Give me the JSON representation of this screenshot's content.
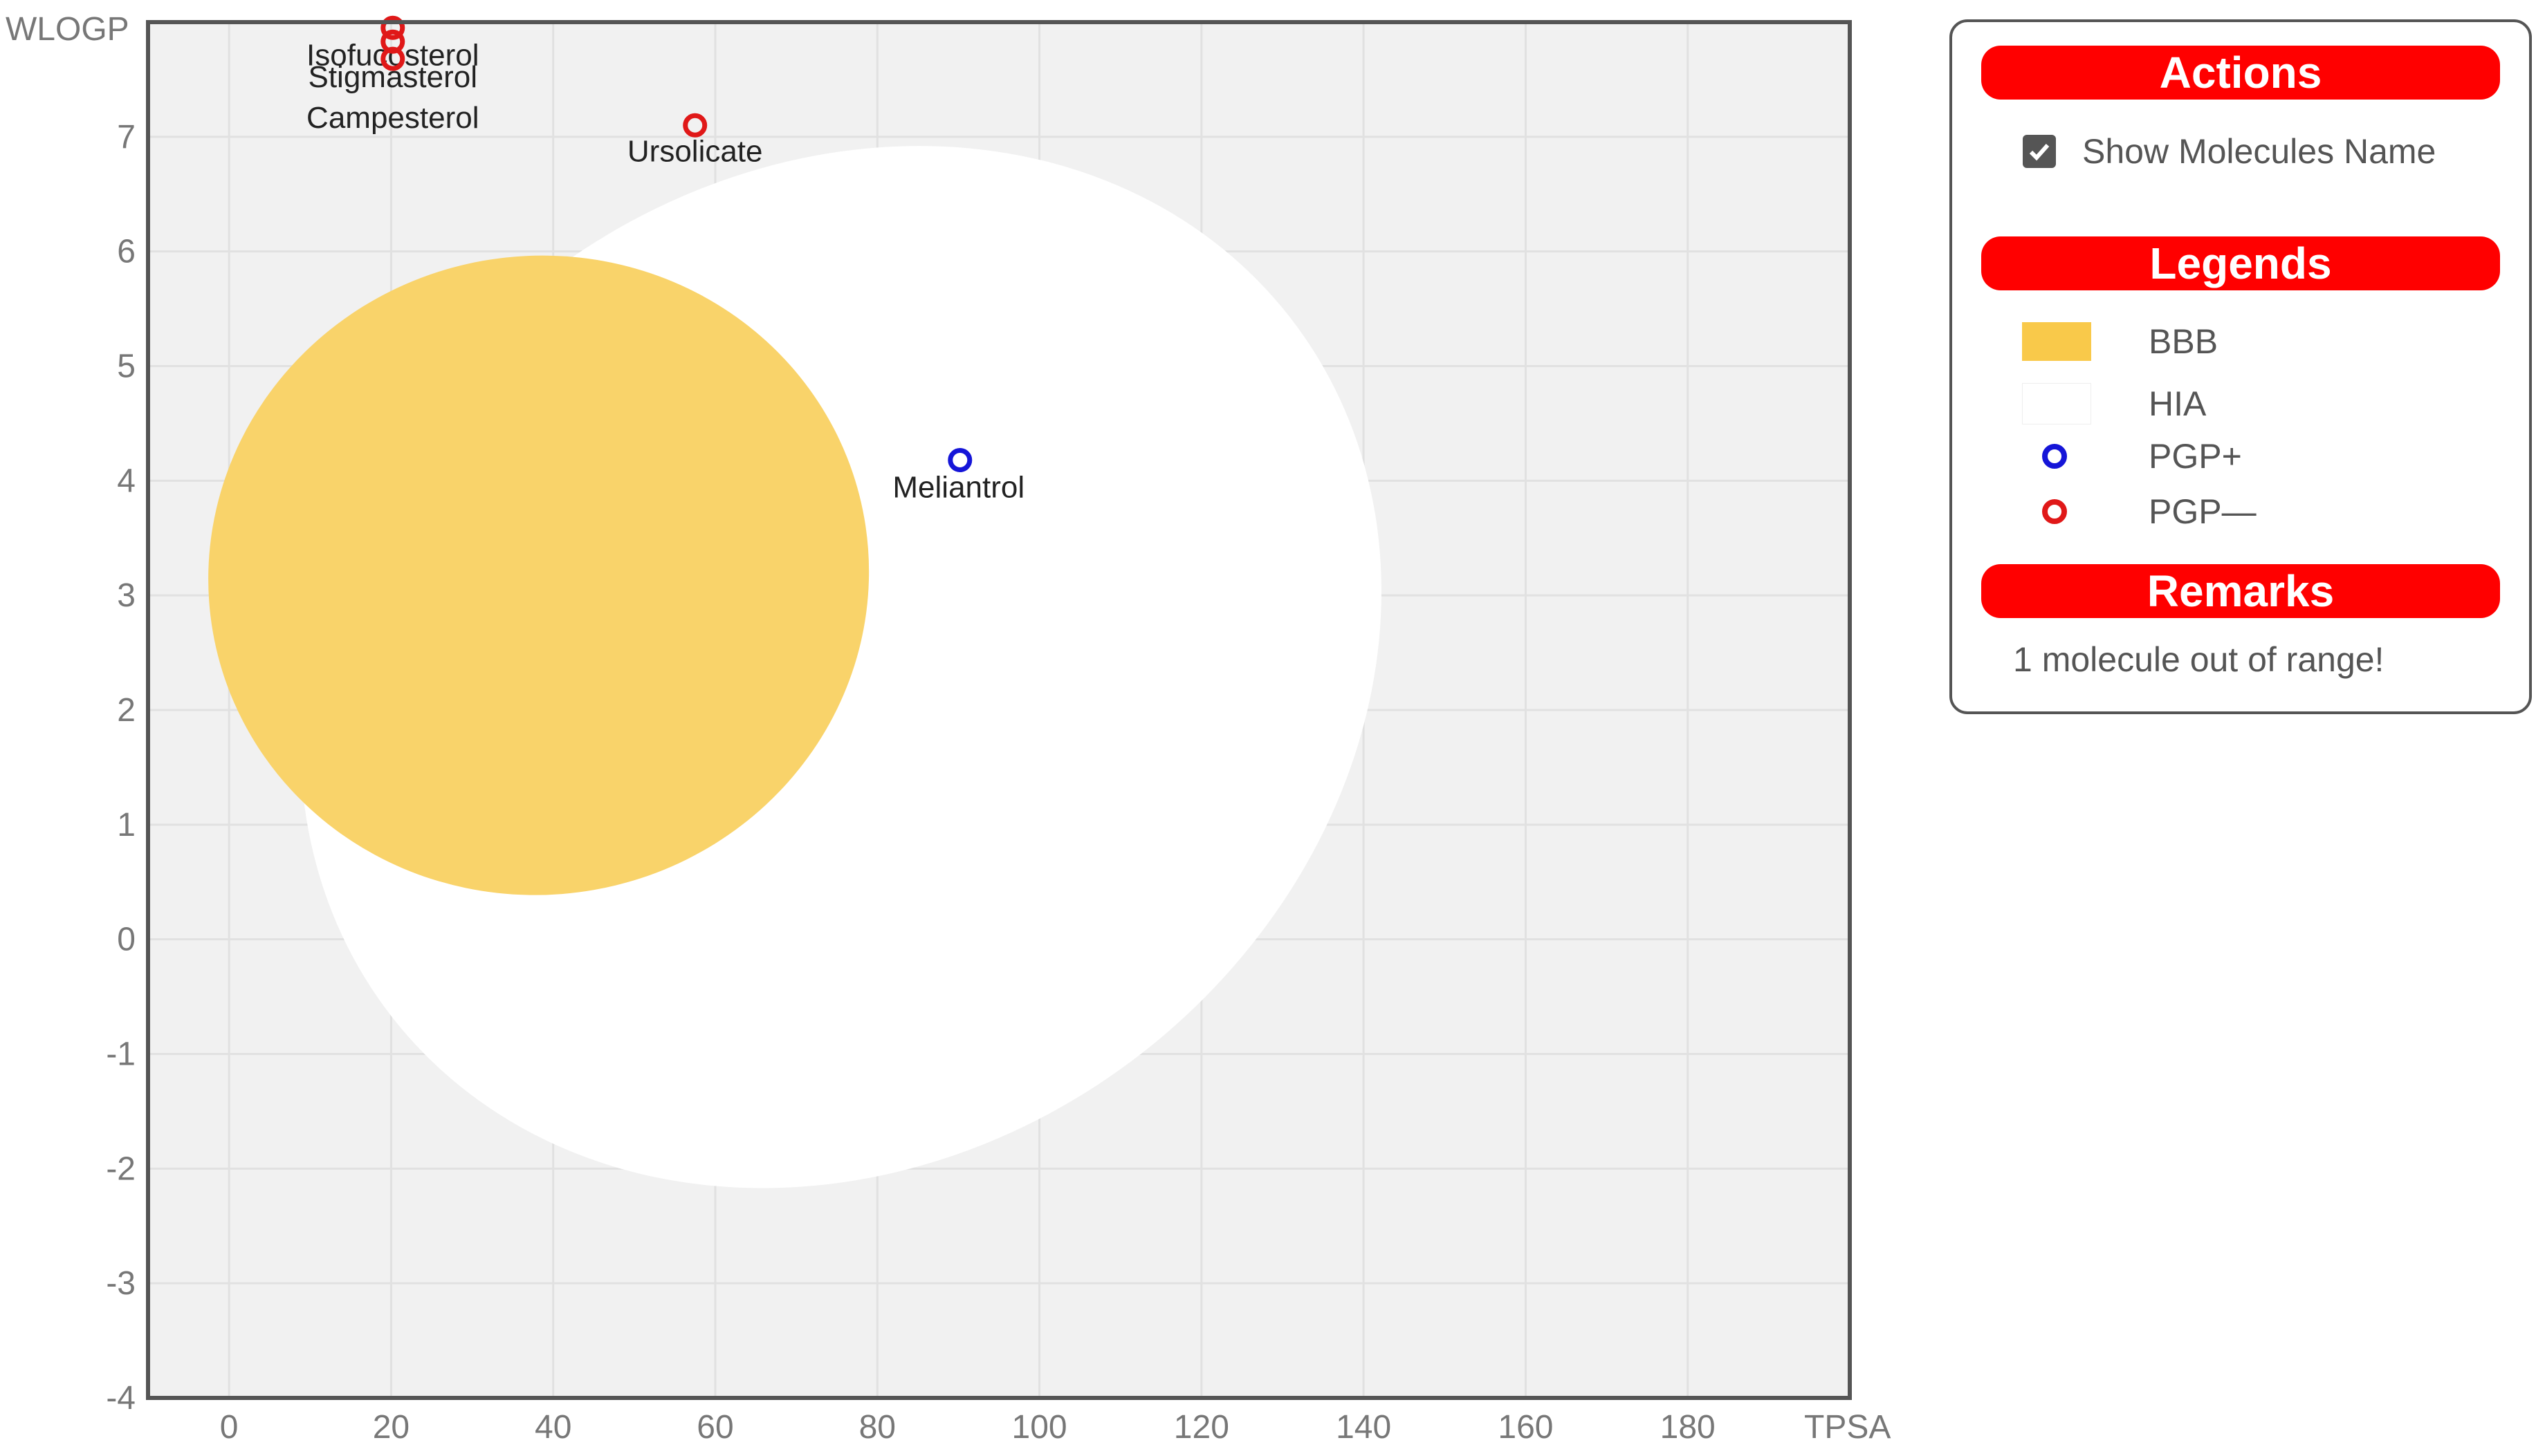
{
  "chart_data": {
    "type": "scatter",
    "xlabel": "TPSA",
    "ylabel": "WLOGP",
    "xlim": [
      -10,
      200
    ],
    "ylim": [
      -4,
      8
    ],
    "x_ticks": [
      0,
      20,
      40,
      60,
      80,
      100,
      120,
      140,
      160,
      180
    ],
    "y_ticks": [
      -4,
      -3,
      -2,
      -1,
      0,
      1,
      2,
      3,
      4,
      5,
      6,
      7
    ],
    "grid": true,
    "regions": [
      {
        "name": "HIA",
        "shape": "ellipse",
        "color": "#ffffff"
      },
      {
        "name": "BBB",
        "shape": "ellipse",
        "color": "#f9d36a"
      }
    ],
    "points": [
      {
        "name": "Isofucosterol",
        "x": 20.2,
        "y": 7.95,
        "pgp": "PGP-"
      },
      {
        "name": "Stigmasterol",
        "x": 20.2,
        "y": 7.83,
        "pgp": "PGP-"
      },
      {
        "name": "Campesterol",
        "x": 20.2,
        "y": 7.68,
        "pgp": "PGP-"
      },
      {
        "name": "Ursolicate",
        "x": 57.5,
        "y": 7.1,
        "pgp": "PGP-"
      },
      {
        "name": "Meliantrol",
        "x": 90.2,
        "y": 4.18,
        "pgp": "PGP+"
      }
    ],
    "colors": {
      "plot_bg": "#f1f1f1",
      "grid": "#e1e1e1",
      "pgp_plus": "#1515d8",
      "pgp_minus": "#e01818",
      "bbb": "#f9d36a",
      "hia": "#ffffff"
    }
  },
  "panel": {
    "actions_title": "Actions",
    "show_names_label": "Show Molecules Name",
    "show_names_checked": true,
    "legends_title": "Legends",
    "legend": [
      {
        "label": "BBB",
        "kind": "swatch",
        "color": "#f9c94a"
      },
      {
        "label": "HIA",
        "kind": "swatch",
        "color": "#ffffff"
      },
      {
        "label": "PGP+",
        "kind": "circle",
        "color": "#1515d8"
      },
      {
        "label": "PGP—",
        "kind": "circle",
        "color": "#e01818"
      }
    ],
    "remarks_title": "Remarks",
    "remarks_text": "1 molecule out of range!"
  }
}
